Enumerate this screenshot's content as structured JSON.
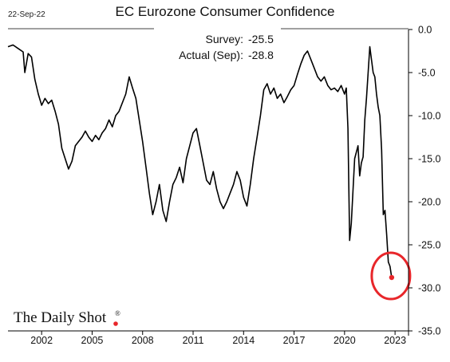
{
  "header": {
    "date": "22-Sep-22",
    "title": "EC Eurozone Consumer Confidence"
  },
  "annotations": {
    "survey_label": "Survey:",
    "survey_value": "-25.5",
    "actual_label": "Actual (Sep):",
    "actual_value": "-28.8"
  },
  "logo": {
    "text": "The Daily Shot",
    "mark": "®",
    "dot_color": "#e8262a"
  },
  "colors": {
    "line": "#000000",
    "highlight": "#e8262a",
    "grid": "#000000"
  },
  "chart_data": {
    "type": "line",
    "title": "EC Eurozone Consumer Confidence",
    "xlabel": "",
    "ylabel": "",
    "xlim": [
      2000.0,
      2023.8
    ],
    "ylim": [
      -35.0,
      0.0
    ],
    "x_ticks": [
      2002,
      2005,
      2008,
      2011,
      2014,
      2017,
      2020,
      2023
    ],
    "y_ticks": [
      0.0,
      -5.0,
      -10.0,
      -15.0,
      -20.0,
      -25.0,
      -30.0,
      -35.0
    ],
    "y_tick_labels": [
      "0.0",
      "-5.0",
      "-10.0",
      "-15.0",
      "-20.0",
      "-25.0",
      "-30.0",
      "-35.0"
    ],
    "y_axis_side": "right",
    "grid": false,
    "series": [
      {
        "points": [
          [
            2000.0,
            -2.0
          ],
          [
            2000.3,
            -1.8
          ],
          [
            2000.6,
            -2.2
          ],
          [
            2000.9,
            -2.6
          ],
          [
            2001.0,
            -5.0
          ],
          [
            2001.2,
            -2.8
          ],
          [
            2001.4,
            -3.2
          ],
          [
            2001.6,
            -5.8
          ],
          [
            2001.8,
            -7.5
          ],
          [
            2002.0,
            -8.8
          ],
          [
            2002.2,
            -8.0
          ],
          [
            2002.4,
            -8.6
          ],
          [
            2002.6,
            -8.2
          ],
          [
            2002.8,
            -9.5
          ],
          [
            2003.0,
            -11.0
          ],
          [
            2003.2,
            -13.8
          ],
          [
            2003.4,
            -15.0
          ],
          [
            2003.6,
            -16.2
          ],
          [
            2003.8,
            -15.3
          ],
          [
            2004.0,
            -13.5
          ],
          [
            2004.2,
            -13.0
          ],
          [
            2004.4,
            -12.5
          ],
          [
            2004.6,
            -11.8
          ],
          [
            2004.8,
            -12.5
          ],
          [
            2005.0,
            -13.0
          ],
          [
            2005.2,
            -12.3
          ],
          [
            2005.4,
            -12.8
          ],
          [
            2005.6,
            -12.0
          ],
          [
            2005.8,
            -11.5
          ],
          [
            2006.0,
            -10.5
          ],
          [
            2006.2,
            -11.3
          ],
          [
            2006.4,
            -10.0
          ],
          [
            2006.6,
            -9.5
          ],
          [
            2006.8,
            -8.5
          ],
          [
            2007.0,
            -7.5
          ],
          [
            2007.2,
            -5.5
          ],
          [
            2007.4,
            -6.8
          ],
          [
            2007.6,
            -8.0
          ],
          [
            2007.8,
            -10.5
          ],
          [
            2008.0,
            -13.0
          ],
          [
            2008.2,
            -16.0
          ],
          [
            2008.4,
            -19.0
          ],
          [
            2008.6,
            -21.5
          ],
          [
            2008.8,
            -20.0
          ],
          [
            2009.0,
            -18.0
          ],
          [
            2009.2,
            -21.0
          ],
          [
            2009.4,
            -22.3
          ],
          [
            2009.6,
            -20.0
          ],
          [
            2009.8,
            -18.0
          ],
          [
            2010.0,
            -17.2
          ],
          [
            2010.2,
            -16.0
          ],
          [
            2010.4,
            -17.8
          ],
          [
            2010.6,
            -15.0
          ],
          [
            2010.8,
            -13.5
          ],
          [
            2011.0,
            -12.0
          ],
          [
            2011.2,
            -11.5
          ],
          [
            2011.4,
            -13.5
          ],
          [
            2011.6,
            -15.5
          ],
          [
            2011.8,
            -17.5
          ],
          [
            2012.0,
            -18.0
          ],
          [
            2012.2,
            -16.5
          ],
          [
            2012.4,
            -18.5
          ],
          [
            2012.6,
            -20.0
          ],
          [
            2012.8,
            -20.8
          ],
          [
            2013.0,
            -20.0
          ],
          [
            2013.2,
            -19.0
          ],
          [
            2013.4,
            -18.0
          ],
          [
            2013.6,
            -16.5
          ],
          [
            2013.8,
            -17.5
          ],
          [
            2014.0,
            -19.5
          ],
          [
            2014.2,
            -20.5
          ],
          [
            2014.4,
            -18.0
          ],
          [
            2014.6,
            -15.0
          ],
          [
            2014.8,
            -12.5
          ],
          [
            2015.0,
            -10.0
          ],
          [
            2015.2,
            -7.0
          ],
          [
            2015.4,
            -6.3
          ],
          [
            2015.6,
            -7.5
          ],
          [
            2015.8,
            -6.8
          ],
          [
            2016.0,
            -8.0
          ],
          [
            2016.2,
            -7.5
          ],
          [
            2016.4,
            -8.5
          ],
          [
            2016.6,
            -7.8
          ],
          [
            2016.8,
            -7.0
          ],
          [
            2017.0,
            -6.5
          ],
          [
            2017.2,
            -5.2
          ],
          [
            2017.4,
            -4.0
          ],
          [
            2017.6,
            -3.0
          ],
          [
            2017.8,
            -2.5
          ],
          [
            2018.0,
            -3.5
          ],
          [
            2018.2,
            -4.5
          ],
          [
            2018.4,
            -5.5
          ],
          [
            2018.6,
            -6.0
          ],
          [
            2018.8,
            -5.5
          ],
          [
            2019.0,
            -6.5
          ],
          [
            2019.2,
            -7.0
          ],
          [
            2019.4,
            -6.8
          ],
          [
            2019.6,
            -7.2
          ],
          [
            2019.8,
            -6.5
          ],
          [
            2020.0,
            -7.5
          ],
          [
            2020.1,
            -6.8
          ],
          [
            2020.2,
            -11.5
          ],
          [
            2020.3,
            -24.5
          ],
          [
            2020.4,
            -22.5
          ],
          [
            2020.6,
            -15.0
          ],
          [
            2020.8,
            -13.5
          ],
          [
            2020.9,
            -17.0
          ],
          [
            2021.0,
            -15.5
          ],
          [
            2021.1,
            -14.8
          ],
          [
            2021.2,
            -10.5
          ],
          [
            2021.3,
            -8.0
          ],
          [
            2021.4,
            -5.0
          ],
          [
            2021.5,
            -2.0
          ],
          [
            2021.6,
            -3.5
          ],
          [
            2021.7,
            -5.0
          ],
          [
            2021.8,
            -5.5
          ],
          [
            2021.9,
            -7.5
          ],
          [
            2022.0,
            -9.0
          ],
          [
            2022.1,
            -10.0
          ],
          [
            2022.2,
            -14.0
          ],
          [
            2022.3,
            -21.5
          ],
          [
            2022.4,
            -21.0
          ],
          [
            2022.5,
            -23.8
          ],
          [
            2022.6,
            -27.0
          ],
          [
            2022.7,
            -27.5
          ],
          [
            2022.8,
            -28.8
          ]
        ]
      }
    ],
    "highlight": {
      "x": 2022.8,
      "y": -28.8,
      "marker": "dot with circle"
    }
  }
}
